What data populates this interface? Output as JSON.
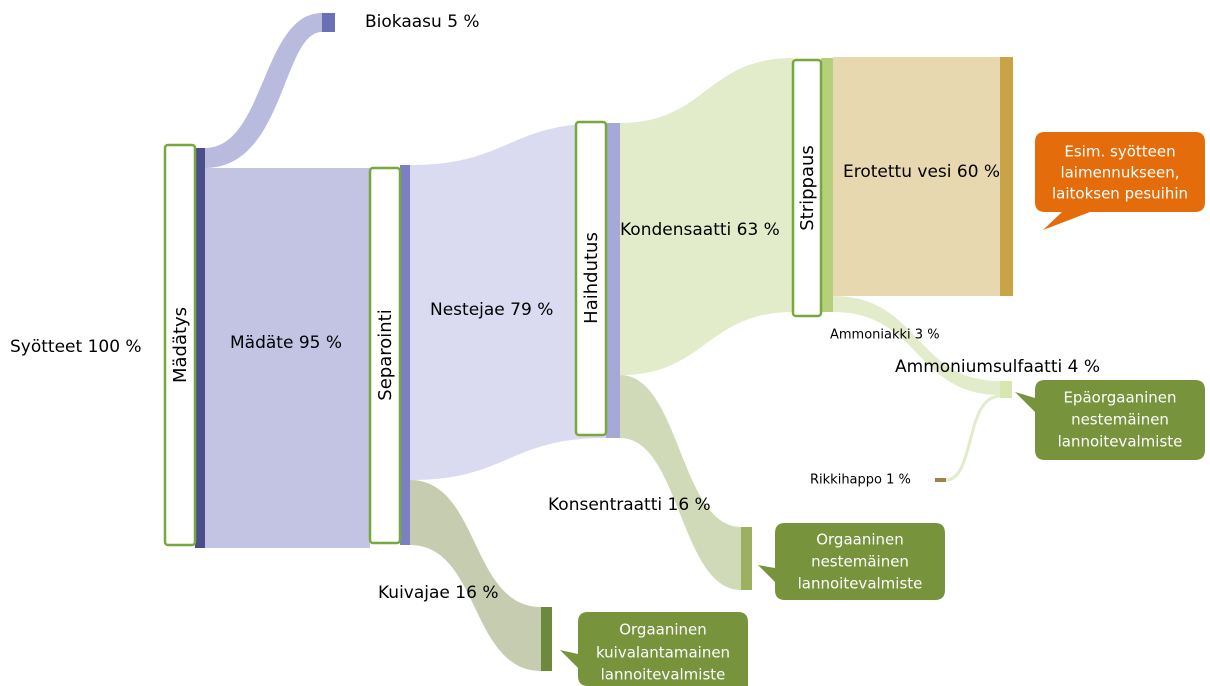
{
  "nodes": [
    {
      "label": "Mädätys"
    },
    {
      "label": "Separointi"
    },
    {
      "label": "Haihdutus"
    },
    {
      "label": "Strippaus"
    }
  ],
  "flows": [
    {
      "label": "Syötteet 100 %"
    },
    {
      "label": "Biokaasu 5 %"
    },
    {
      "label": "Mädäte 95 %"
    },
    {
      "label": "Nestejae 79 %"
    },
    {
      "label": "Kuivajae 16 %"
    },
    {
      "label": "Kondensaatti 63 %"
    },
    {
      "label": "Konsentraatti 16 %"
    },
    {
      "label": "Erotettu vesi 60 %"
    },
    {
      "label": "Ammoniakki 3 %"
    },
    {
      "label": "Ammoniumsulfaatti 4 %"
    },
    {
      "label": "Rikkihappo 1 %"
    }
  ],
  "callouts": [
    {
      "lines": [
        "Esim. syötteen",
        "laimennukseen,",
        "laitoksen pesuihin"
      ]
    },
    {
      "lines": [
        "Epäorgaaninen",
        "nestemäinen",
        "lannoitevalmiste"
      ]
    },
    {
      "lines": [
        "Orgaaninen",
        "nestemäinen",
        "lannoitevalmiste"
      ]
    },
    {
      "lines": [
        "Orgaaninen",
        "kuivalantamainen",
        "lannoitevalmiste"
      ]
    }
  ]
}
